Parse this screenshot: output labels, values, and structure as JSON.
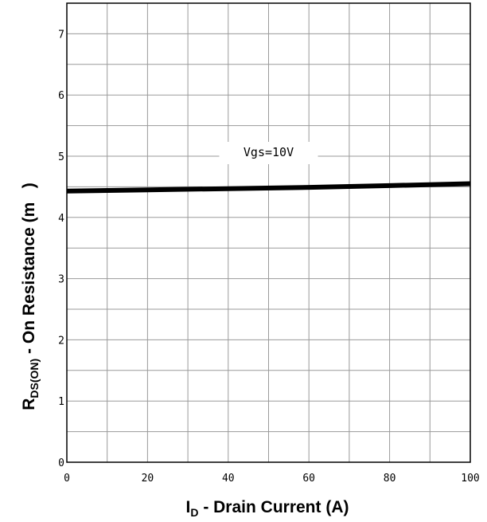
{
  "chart_data": {
    "type": "line",
    "xlabel": {
      "main": "I",
      "sub": "D",
      "rest": " - Drain Current (A)"
    },
    "ylabel": {
      "main": "R",
      "sub": "DS(ON)",
      "rest": " - On Resistance (m   )"
    },
    "xlim": [
      0,
      100
    ],
    "ylim": [
      0,
      7.5
    ],
    "x_ticks": [
      "0",
      "20",
      "40",
      "60",
      "80",
      "100"
    ],
    "y_ticks": [
      "0",
      "1",
      "2",
      "3",
      "4",
      "5",
      "6",
      "7"
    ],
    "grid": true,
    "series": [
      {
        "name": "Vgs=10V",
        "x": [
          0,
          20,
          40,
          60,
          80,
          100
        ],
        "y": [
          4.43,
          4.45,
          4.47,
          4.49,
          4.52,
          4.55
        ]
      }
    ]
  }
}
